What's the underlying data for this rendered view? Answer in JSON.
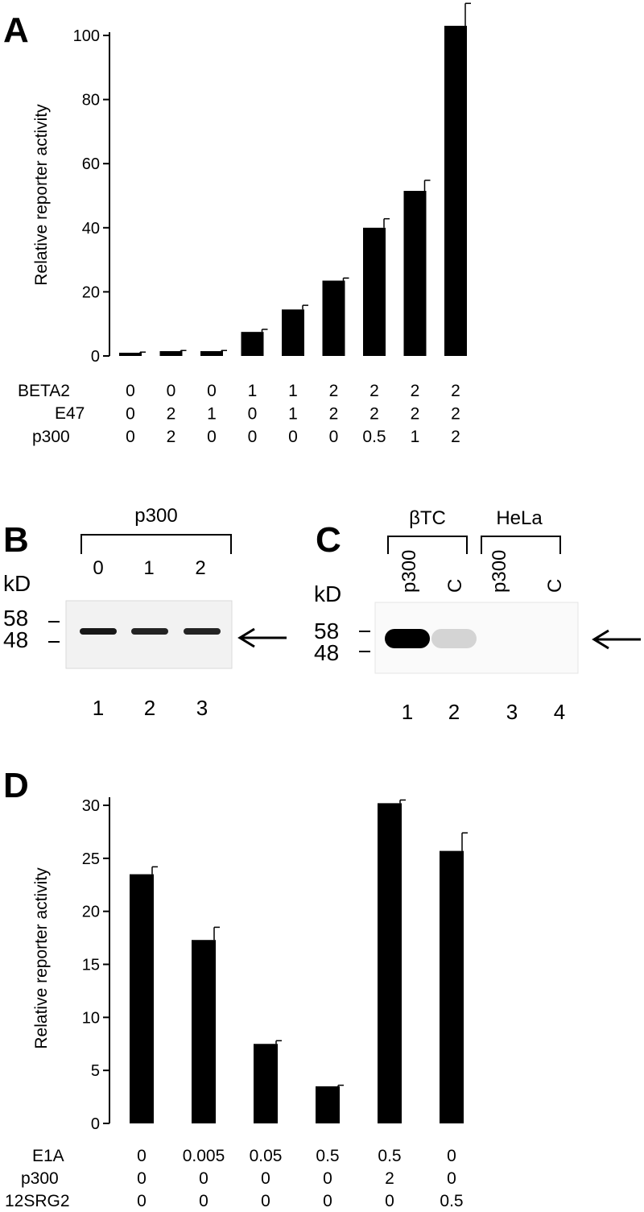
{
  "figure": {
    "panels": {
      "A": {
        "letter": "A",
        "table": {
          "rows": [
            {
              "label": "BETA2",
              "values": [
                "0",
                "0",
                "0",
                "1",
                "1",
                "2",
                "2",
                "2",
                "2"
              ]
            },
            {
              "label": "E47",
              "values": [
                "0",
                "2",
                "1",
                "0",
                "1",
                "2",
                "2",
                "2",
                "2"
              ]
            },
            {
              "label": "p300",
              "values": [
                "0",
                "2",
                "0",
                "0",
                "0",
                "0",
                "0.5",
                "1",
                "2"
              ]
            }
          ]
        }
      },
      "B": {
        "letter": "B",
        "bracket_label": "p300",
        "dose_labels": [
          "0",
          "1",
          "2"
        ],
        "kd_label": "kD",
        "markers": [
          "58",
          "48"
        ],
        "lane_numbers": [
          "1",
          "2",
          "3"
        ],
        "band_intensity": [
          0.9,
          0.85,
          0.85
        ]
      },
      "C": {
        "letter": "C",
        "groups": [
          {
            "label": "βTC",
            "lanes": [
              "p300",
              "C"
            ]
          },
          {
            "label": "HeLa",
            "lanes": [
              "p300",
              "C"
            ]
          }
        ],
        "kd_label": "kD",
        "markers": [
          "58",
          "48"
        ],
        "lane_numbers": [
          "1",
          "2",
          "3",
          "4"
        ],
        "band_intensity": [
          1.0,
          0.15,
          0.0,
          0.0
        ]
      },
      "D": {
        "letter": "D",
        "table": {
          "rows": [
            {
              "label": "E1A",
              "values": [
                "0",
                "0.005",
                "0.05",
                "0.5",
                "0.5",
                "0"
              ]
            },
            {
              "label": "p300",
              "values": [
                "0",
                "0",
                "0",
                "0",
                "2",
                "0"
              ]
            },
            {
              "label": "12SRG2",
              "values": [
                "0",
                "0",
                "0",
                "0",
                "0",
                "0.5"
              ]
            }
          ]
        }
      }
    }
  },
  "chart_data": [
    {
      "panel": "A",
      "type": "bar",
      "ylabel": "Relative reporter activity",
      "ylim": [
        0,
        100
      ],
      "yticks": [
        0,
        20,
        40,
        60,
        80,
        100
      ],
      "values": [
        1,
        1.5,
        1.5,
        7.5,
        14.5,
        23.5,
        40,
        51.5,
        103
      ],
      "errors": [
        0.2,
        0.2,
        0.2,
        0.8,
        1.3,
        0.8,
        2.8,
        3.3,
        7
      ],
      "color": "#000000"
    },
    {
      "panel": "D",
      "type": "bar",
      "ylabel": "Relative reporter activity",
      "ylim": [
        0,
        30
      ],
      "yticks": [
        0,
        5,
        10,
        15,
        20,
        25,
        30
      ],
      "values": [
        23.5,
        17.3,
        7.5,
        3.5,
        30.2,
        25.7
      ],
      "errors": [
        0.7,
        1.2,
        0.3,
        0.1,
        0.3,
        1.7
      ],
      "color": "#000000"
    }
  ]
}
